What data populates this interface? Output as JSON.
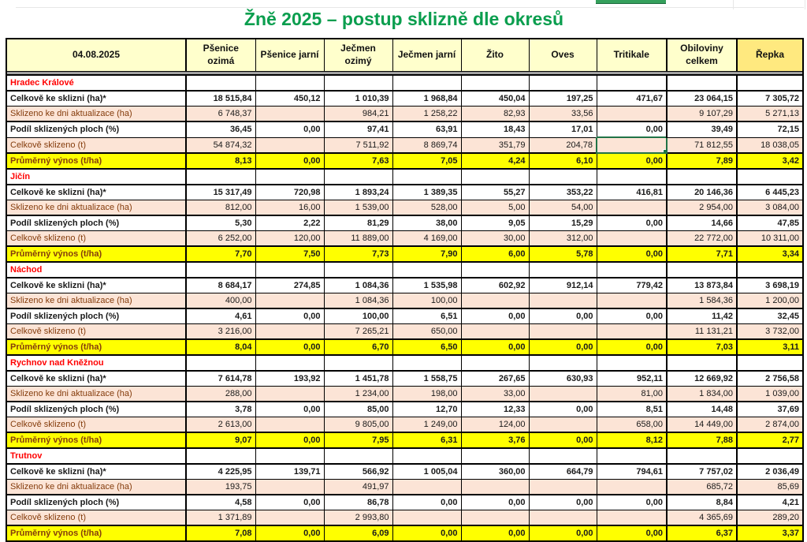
{
  "meta": {
    "title": "Žně 2025 – postup sklizně dle okresů",
    "date": "04.08.2025"
  },
  "colors": {
    "title_green": "#0a9e4e",
    "district_red": "#ff0000",
    "label_maroon": "#843c0c",
    "band_tan": "#fce4d6",
    "band_yellow": "#ffff00",
    "header_yellow": "#ffffcc",
    "repka_header_yellow": "#ffe97f",
    "selection_green": "#217346"
  },
  "columns": [
    "Pšenice ozimá",
    "Pšenice jarní",
    "Ječmen ozimý",
    "Ječmen jarní",
    "Žito",
    "Oves",
    "Tritikale",
    "Obiloviny celkem",
    "Řepka"
  ],
  "row_labels": {
    "total_ha": "Celkově ke sklizni (ha)*",
    "harvested_ha": "Sklizeno ke dni aktualizace (ha)",
    "share_pct": "Podíl sklizených ploch (%)",
    "harvested_t": "Celkově sklizeno (t)",
    "yield_tha": "Průměrný výnos (t/ha)"
  },
  "selection": {
    "district": 0,
    "row": "harvested_t",
    "col": 6
  },
  "districts": [
    {
      "name": "Hradec Králové",
      "rows": {
        "total_ha": [
          "18 515,84",
          "450,12",
          "1 010,39",
          "1 968,84",
          "450,04",
          "197,25",
          "471,67",
          "23 064,15",
          "7 305,72"
        ],
        "harvested_ha": [
          "6 748,37",
          "",
          "984,21",
          "1 258,22",
          "82,93",
          "33,56",
          "",
          "9 107,29",
          "5 271,13"
        ],
        "share_pct": [
          "36,45",
          "0,00",
          "97,41",
          "63,91",
          "18,43",
          "17,01",
          "0,00",
          "39,49",
          "72,15"
        ],
        "harvested_t": [
          "54 874,32",
          "",
          "7 511,92",
          "8 869,74",
          "351,79",
          "204,78",
          "",
          "71 812,55",
          "18 038,05"
        ],
        "yield_tha": [
          "8,13",
          "0,00",
          "7,63",
          "7,05",
          "4,24",
          "6,10",
          "0,00",
          "7,89",
          "3,42"
        ]
      }
    },
    {
      "name": "Jičín",
      "rows": {
        "total_ha": [
          "15 317,49",
          "720,98",
          "1 893,24",
          "1 389,35",
          "55,27",
          "353,22",
          "416,81",
          "20 146,36",
          "6 445,23"
        ],
        "harvested_ha": [
          "812,00",
          "16,00",
          "1 539,00",
          "528,00",
          "5,00",
          "54,00",
          "",
          "2 954,00",
          "3 084,00"
        ],
        "share_pct": [
          "5,30",
          "2,22",
          "81,29",
          "38,00",
          "9,05",
          "15,29",
          "0,00",
          "14,66",
          "47,85"
        ],
        "harvested_t": [
          "6 252,00",
          "120,00",
          "11 889,00",
          "4 169,00",
          "30,00",
          "312,00",
          "",
          "22 772,00",
          "10 311,00"
        ],
        "yield_tha": [
          "7,70",
          "7,50",
          "7,73",
          "7,90",
          "6,00",
          "5,78",
          "0,00",
          "7,71",
          "3,34"
        ]
      }
    },
    {
      "name": "Náchod",
      "rows": {
        "total_ha": [
          "8 684,17",
          "274,85",
          "1 084,36",
          "1 535,98",
          "602,92",
          "912,14",
          "779,42",
          "13 873,84",
          "3 698,19"
        ],
        "harvested_ha": [
          "400,00",
          "",
          "1 084,36",
          "100,00",
          "",
          "",
          "",
          "1 584,36",
          "1 200,00"
        ],
        "share_pct": [
          "4,61",
          "0,00",
          "100,00",
          "6,51",
          "0,00",
          "0,00",
          "0,00",
          "11,42",
          "32,45"
        ],
        "harvested_t": [
          "3 216,00",
          "",
          "7 265,21",
          "650,00",
          "",
          "",
          "",
          "11 131,21",
          "3 732,00"
        ],
        "yield_tha": [
          "8,04",
          "0,00",
          "6,70",
          "6,50",
          "0,00",
          "0,00",
          "0,00",
          "7,03",
          "3,11"
        ]
      }
    },
    {
      "name": "Rychnov nad Kněžnou",
      "rows": {
        "total_ha": [
          "7 614,78",
          "193,92",
          "1 451,78",
          "1 558,75",
          "267,65",
          "630,93",
          "952,11",
          "12 669,92",
          "2 756,58"
        ],
        "harvested_ha": [
          "288,00",
          "",
          "1 234,00",
          "198,00",
          "33,00",
          "",
          "81,00",
          "1 834,00",
          "1 039,00"
        ],
        "share_pct": [
          "3,78",
          "0,00",
          "85,00",
          "12,70",
          "12,33",
          "0,00",
          "8,51",
          "14,48",
          "37,69"
        ],
        "harvested_t": [
          "2 613,00",
          "",
          "9 805,00",
          "1 249,00",
          "124,00",
          "",
          "658,00",
          "14 449,00",
          "2 874,00"
        ],
        "yield_tha": [
          "9,07",
          "0,00",
          "7,95",
          "6,31",
          "3,76",
          "0,00",
          "8,12",
          "7,88",
          "2,77"
        ]
      }
    },
    {
      "name": "Trutnov",
      "rows": {
        "total_ha": [
          "4 225,95",
          "139,71",
          "566,92",
          "1 005,04",
          "360,00",
          "664,79",
          "794,61",
          "7 757,02",
          "2 036,49"
        ],
        "harvested_ha": [
          "193,75",
          "",
          "491,97",
          "",
          "",
          "",
          "",
          "685,72",
          "85,69"
        ],
        "share_pct": [
          "4,58",
          "0,00",
          "86,78",
          "0,00",
          "0,00",
          "0,00",
          "0,00",
          "8,84",
          "4,21"
        ],
        "harvested_t": [
          "1 371,89",
          "",
          "2 993,80",
          "",
          "",
          "",
          "",
          "4 365,69",
          "289,20"
        ],
        "yield_tha": [
          "7,08",
          "0,00",
          "6,09",
          "0,00",
          "0,00",
          "0,00",
          "0,00",
          "6,37",
          "3,37"
        ]
      }
    }
  ]
}
